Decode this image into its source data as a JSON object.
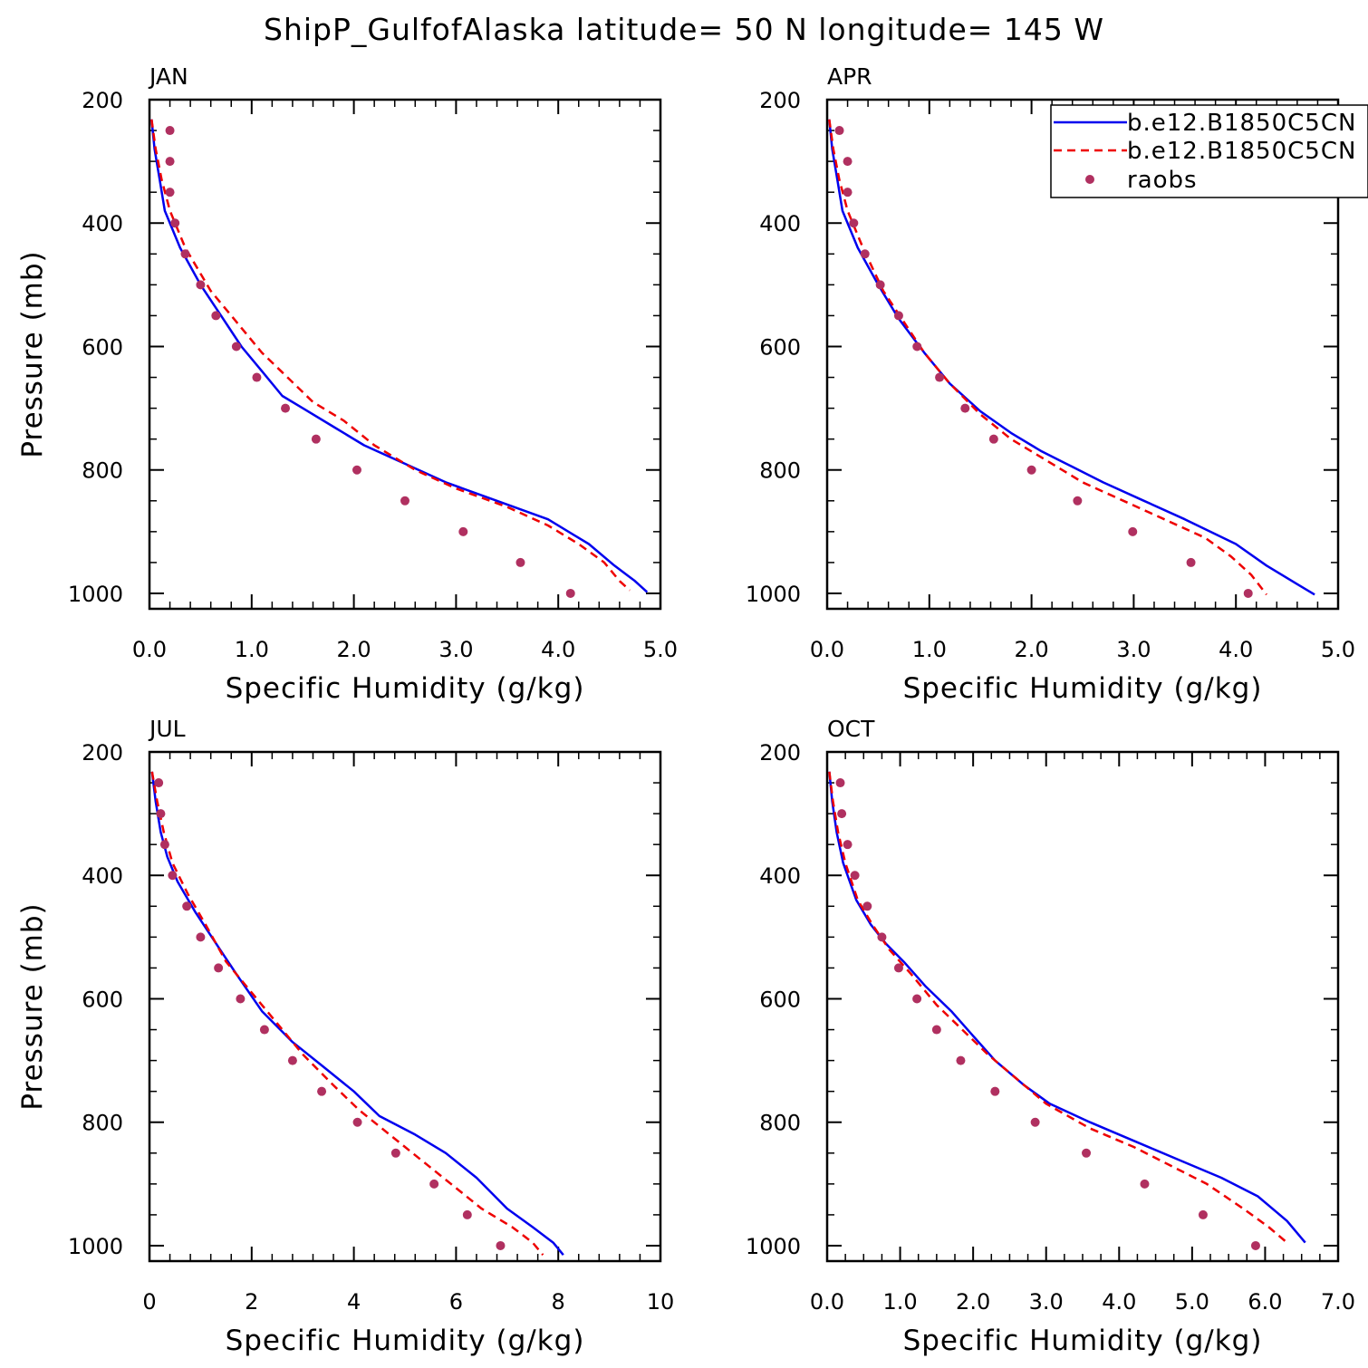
{
  "title": "ShipP_GulfofAlaska  latitude= 50 N longitude= 145 W",
  "colors": {
    "model1": "#0000ee",
    "model2": "#ee0000",
    "obs": "#b03060"
  },
  "legend": {
    "placement": "top-right",
    "entries": [
      {
        "label": "b.e12.B1850C5CN",
        "style": "solid",
        "color": "#0000ee"
      },
      {
        "label": "b.e12.B1850C5CN",
        "style": "dashed",
        "color": "#ee0000"
      },
      {
        "label": "raobs",
        "style": "dot",
        "color": "#b03060"
      }
    ]
  },
  "chart_data": [
    {
      "type": "line",
      "panel_label": "JAN",
      "xlabel": "Specific Humidity (g/kg)",
      "ylabel": "Pressure (mb)",
      "xlim": [
        0,
        5
      ],
      "ylim": [
        200,
        1025
      ],
      "y_inverted": true,
      "grid": false,
      "xticks": [
        0,
        1,
        2,
        3,
        4,
        5
      ],
      "xtick_labels": [
        "0.0",
        "1.0",
        "2.0",
        "3.0",
        "4.0",
        "5.0"
      ],
      "yticks": [
        200,
        400,
        600,
        800,
        1000
      ],
      "ytick_labels": [
        "200",
        "400",
        "600",
        "800",
        "1000"
      ],
      "series": [
        {
          "kind": "line",
          "style": "solid",
          "points": [
            [
              0.02,
              232
            ],
            [
              0.05,
              280
            ],
            [
              0.1,
              330
            ],
            [
              0.15,
              380
            ],
            [
              0.3,
              440
            ],
            [
              0.5,
              500
            ],
            [
              0.7,
              550
            ],
            [
              0.9,
              600
            ],
            [
              1.1,
              640
            ],
            [
              1.3,
              680
            ],
            [
              1.5,
              700
            ],
            [
              1.8,
              730
            ],
            [
              2.1,
              760
            ],
            [
              2.5,
              790
            ],
            [
              2.9,
              820
            ],
            [
              3.4,
              850
            ],
            [
              3.9,
              880
            ],
            [
              4.3,
              920
            ],
            [
              4.55,
              955
            ],
            [
              4.75,
              980
            ],
            [
              4.87,
              998
            ]
          ]
        },
        {
          "kind": "line",
          "style": "dashed",
          "points": [
            [
              0.02,
              232
            ],
            [
              0.06,
              280
            ],
            [
              0.12,
              330
            ],
            [
              0.2,
              380
            ],
            [
              0.35,
              440
            ],
            [
              0.6,
              510
            ],
            [
              0.85,
              560
            ],
            [
              1.1,
              610
            ],
            [
              1.35,
              650
            ],
            [
              1.6,
              690
            ],
            [
              1.9,
              720
            ],
            [
              2.2,
              760
            ],
            [
              2.6,
              800
            ],
            [
              3.0,
              830
            ],
            [
              3.5,
              860
            ],
            [
              3.9,
              890
            ],
            [
              4.2,
              920
            ],
            [
              4.45,
              950
            ],
            [
              4.6,
              980
            ],
            [
              4.7,
              995
            ]
          ]
        },
        {
          "kind": "dots",
          "points": [
            [
              0.2,
              250
            ],
            [
              0.2,
              300
            ],
            [
              0.2,
              350
            ],
            [
              0.25,
              400
            ],
            [
              0.35,
              450
            ],
            [
              0.5,
              500
            ],
            [
              0.65,
              550
            ],
            [
              0.85,
              600
            ],
            [
              1.05,
              650
            ],
            [
              1.33,
              700
            ],
            [
              1.63,
              750
            ],
            [
              2.03,
              800
            ],
            [
              2.5,
              850
            ],
            [
              3.07,
              900
            ],
            [
              3.63,
              950
            ],
            [
              4.12,
              1000
            ]
          ]
        }
      ]
    },
    {
      "type": "line",
      "panel_label": "APR",
      "xlabel": "Specific Humidity (g/kg)",
      "ylabel": "",
      "xlim": [
        0,
        5
      ],
      "ylim": [
        200,
        1025
      ],
      "y_inverted": true,
      "grid": false,
      "xticks": [
        0,
        1,
        2,
        3,
        4,
        5
      ],
      "xtick_labels": [
        "0.0",
        "1.0",
        "2.0",
        "3.0",
        "4.0",
        "5.0"
      ],
      "yticks": [
        200,
        400,
        600,
        800,
        1000
      ],
      "ytick_labels": [
        "200",
        "400",
        "600",
        "800",
        "1000"
      ],
      "series": [
        {
          "kind": "line",
          "style": "solid",
          "points": [
            [
              0.02,
              232
            ],
            [
              0.05,
              280
            ],
            [
              0.1,
              330
            ],
            [
              0.15,
              380
            ],
            [
              0.3,
              440
            ],
            [
              0.5,
              500
            ],
            [
              0.7,
              555
            ],
            [
              0.95,
              610
            ],
            [
              1.2,
              660
            ],
            [
              1.5,
              705
            ],
            [
              1.8,
              740
            ],
            [
              2.1,
              770
            ],
            [
              2.4,
              795
            ],
            [
              2.7,
              820
            ],
            [
              3.1,
              850
            ],
            [
              3.5,
              880
            ],
            [
              4.0,
              920
            ],
            [
              4.3,
              955
            ],
            [
              4.6,
              985
            ],
            [
              4.77,
              1002
            ]
          ]
        },
        {
          "kind": "line",
          "style": "dashed",
          "points": [
            [
              0.02,
              232
            ],
            [
              0.06,
              280
            ],
            [
              0.12,
              330
            ],
            [
              0.2,
              380
            ],
            [
              0.35,
              440
            ],
            [
              0.55,
              510
            ],
            [
              0.75,
              560
            ],
            [
              0.95,
              610
            ],
            [
              1.2,
              660
            ],
            [
              1.5,
              710
            ],
            [
              1.8,
              750
            ],
            [
              2.1,
              780
            ],
            [
              2.5,
              820
            ],
            [
              2.9,
              850
            ],
            [
              3.3,
              880
            ],
            [
              3.7,
              910
            ],
            [
              3.95,
              940
            ],
            [
              4.15,
              970
            ],
            [
              4.3,
              1002
            ]
          ]
        },
        {
          "kind": "dots",
          "points": [
            [
              0.12,
              250
            ],
            [
              0.2,
              300
            ],
            [
              0.2,
              350
            ],
            [
              0.26,
              400
            ],
            [
              0.37,
              450
            ],
            [
              0.52,
              500
            ],
            [
              0.7,
              550
            ],
            [
              0.88,
              600
            ],
            [
              1.1,
              650
            ],
            [
              1.35,
              700
            ],
            [
              1.63,
              750
            ],
            [
              2.0,
              800
            ],
            [
              2.45,
              850
            ],
            [
              2.99,
              900
            ],
            [
              3.56,
              950
            ],
            [
              4.12,
              1000
            ]
          ]
        }
      ]
    },
    {
      "type": "line",
      "panel_label": "JUL",
      "xlabel": "Specific Humidity (g/kg)",
      "ylabel": "Pressure (mb)",
      "xlim": [
        0,
        10
      ],
      "ylim": [
        200,
        1025
      ],
      "y_inverted": true,
      "grid": false,
      "xticks": [
        0,
        2,
        4,
        6,
        8,
        10
      ],
      "xtick_labels": [
        "0",
        "2",
        "4",
        "6",
        "8",
        "10"
      ],
      "yticks": [
        200,
        400,
        600,
        800,
        1000
      ],
      "ytick_labels": [
        "200",
        "400",
        "600",
        "800",
        "1000"
      ],
      "series": [
        {
          "kind": "line",
          "style": "solid",
          "points": [
            [
              0.05,
              232
            ],
            [
              0.12,
              280
            ],
            [
              0.22,
              330
            ],
            [
              0.35,
              370
            ],
            [
              0.55,
              410
            ],
            [
              0.9,
              460
            ],
            [
              1.3,
              510
            ],
            [
              1.7,
              560
            ],
            [
              2.2,
              620
            ],
            [
              2.8,
              670
            ],
            [
              3.4,
              710
            ],
            [
              4.0,
              750
            ],
            [
              4.5,
              790
            ],
            [
              5.2,
              820
            ],
            [
              5.8,
              850
            ],
            [
              6.4,
              890
            ],
            [
              7.0,
              940
            ],
            [
              7.5,
              970
            ],
            [
              7.9,
              995
            ],
            [
              8.1,
              1015
            ]
          ]
        },
        {
          "kind": "line",
          "style": "dashed",
          "points": [
            [
              0.05,
              232
            ],
            [
              0.15,
              280
            ],
            [
              0.28,
              330
            ],
            [
              0.45,
              380
            ],
            [
              0.75,
              430
            ],
            [
              1.1,
              480
            ],
            [
              1.5,
              540
            ],
            [
              2.0,
              590
            ],
            [
              2.5,
              640
            ],
            [
              3.0,
              690
            ],
            [
              3.6,
              740
            ],
            [
              4.1,
              780
            ],
            [
              4.7,
              820
            ],
            [
              5.3,
              860
            ],
            [
              5.9,
              900
            ],
            [
              6.5,
              940
            ],
            [
              7.1,
              970
            ],
            [
              7.5,
              995
            ],
            [
              7.7,
              1015
            ]
          ]
        },
        {
          "kind": "dots",
          "points": [
            [
              0.18,
              250
            ],
            [
              0.22,
              300
            ],
            [
              0.3,
              350
            ],
            [
              0.45,
              400
            ],
            [
              0.73,
              450
            ],
            [
              1.0,
              500
            ],
            [
              1.35,
              550
            ],
            [
              1.78,
              600
            ],
            [
              2.25,
              650
            ],
            [
              2.8,
              700
            ],
            [
              3.37,
              750
            ],
            [
              4.07,
              800
            ],
            [
              4.82,
              850
            ],
            [
              5.57,
              900
            ],
            [
              6.22,
              950
            ],
            [
              6.87,
              1000
            ]
          ]
        }
      ]
    },
    {
      "type": "line",
      "panel_label": "OCT",
      "xlabel": "Specific Humidity (g/kg)",
      "ylabel": "",
      "xlim": [
        0,
        7
      ],
      "ylim": [
        200,
        1025
      ],
      "y_inverted": true,
      "grid": false,
      "xticks": [
        0,
        1,
        2,
        3,
        4,
        5,
        6,
        7
      ],
      "xtick_labels": [
        "0.0",
        "1.0",
        "2.0",
        "3.0",
        "4.0",
        "5.0",
        "6.0",
        "7.0"
      ],
      "yticks": [
        200,
        400,
        600,
        800,
        1000
      ],
      "ytick_labels": [
        "200",
        "400",
        "600",
        "800",
        "1000"
      ],
      "series": [
        {
          "kind": "line",
          "style": "solid",
          "points": [
            [
              0.03,
              232
            ],
            [
              0.07,
              280
            ],
            [
              0.13,
              330
            ],
            [
              0.22,
              380
            ],
            [
              0.4,
              440
            ],
            [
              0.6,
              480
            ],
            [
              0.8,
              510
            ],
            [
              1.05,
              540
            ],
            [
              1.35,
              580
            ],
            [
              1.7,
              620
            ],
            [
              2.0,
              660
            ],
            [
              2.3,
              700
            ],
            [
              2.7,
              740
            ],
            [
              3.05,
              770
            ],
            [
              3.6,
              800
            ],
            [
              4.2,
              830
            ],
            [
              4.8,
              860
            ],
            [
              5.4,
              890
            ],
            [
              5.9,
              920
            ],
            [
              6.3,
              960
            ],
            [
              6.55,
              995
            ]
          ]
        },
        {
          "kind": "line",
          "style": "dashed",
          "points": [
            [
              0.03,
              232
            ],
            [
              0.08,
              280
            ],
            [
              0.15,
              330
            ],
            [
              0.25,
              380
            ],
            [
              0.42,
              440
            ],
            [
              0.62,
              480
            ],
            [
              0.85,
              520
            ],
            [
              1.15,
              560
            ],
            [
              1.5,
              610
            ],
            [
              1.85,
              650
            ],
            [
              2.2,
              690
            ],
            [
              2.6,
              730
            ],
            [
              3.0,
              770
            ],
            [
              3.6,
              810
            ],
            [
              4.2,
              840
            ],
            [
              4.7,
              870
            ],
            [
              5.2,
              900
            ],
            [
              5.7,
              940
            ],
            [
              6.05,
              970
            ],
            [
              6.3,
              995
            ]
          ]
        },
        {
          "kind": "dots",
          "points": [
            [
              0.18,
              250
            ],
            [
              0.2,
              300
            ],
            [
              0.28,
              350
            ],
            [
              0.38,
              400
            ],
            [
              0.55,
              450
            ],
            [
              0.75,
              500
            ],
            [
              0.98,
              550
            ],
            [
              1.23,
              600
            ],
            [
              1.5,
              650
            ],
            [
              1.83,
              700
            ],
            [
              2.3,
              750
            ],
            [
              2.85,
              800
            ],
            [
              3.55,
              850
            ],
            [
              4.35,
              900
            ],
            [
              5.15,
              950
            ],
            [
              5.87,
              1000
            ]
          ]
        }
      ]
    }
  ]
}
